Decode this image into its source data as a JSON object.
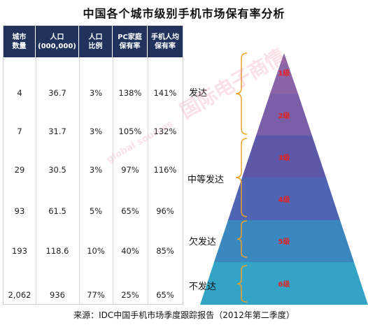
{
  "title": "中国各个城市级别手机市场保有率分析",
  "table": {
    "headers": [
      "城市\n数量",
      "人口\n(000,000)",
      "人口\n比例",
      "PC家庭\n保有率",
      "手机人均\n保有率"
    ],
    "rows": [
      [
        "4",
        "36.7",
        "3%",
        "138%",
        "141%"
      ],
      [
        "7",
        "31.7",
        "3%",
        "105%",
        "132%"
      ],
      [
        "29",
        "30.5",
        "3%",
        "97%",
        "116%"
      ],
      [
        "93",
        "61.5",
        "5%",
        "65%",
        "96%"
      ],
      [
        "193",
        "118.6",
        "10%",
        "40%",
        "85%"
      ],
      [
        "2,062",
        "936",
        "77%",
        "25%",
        "65%"
      ]
    ]
  },
  "pyramid": {
    "tiers": [
      {
        "label": "1级",
        "color": "#8a64a6"
      },
      {
        "label": "2级",
        "color": "#7a5fa8"
      },
      {
        "label": "3级",
        "color": "#5d57a8"
      },
      {
        "label": "4级",
        "color": "#4f65b3"
      },
      {
        "label": "5级",
        "color": "#3a88bf"
      },
      {
        "label": "6级",
        "color": "#33a4c6"
      }
    ],
    "groups": [
      {
        "label": "发达"
      },
      {
        "label": "中等发达"
      },
      {
        "label": "欠发达"
      },
      {
        "label": "不发达"
      }
    ]
  },
  "chart_data": {
    "type": "table",
    "title": "中国各个城市级别手机市场保有率分析",
    "columns": [
      "城市数量",
      "人口(000,000)",
      "人口比例",
      "PC家庭保有率",
      "手机人均保有率"
    ],
    "tiers": [
      "1级",
      "2级",
      "3级",
      "4级",
      "5级",
      "6级"
    ],
    "rows": [
      [
        4,
        36.7,
        3,
        138,
        141
      ],
      [
        7,
        31.7,
        3,
        105,
        132
      ],
      [
        29,
        30.5,
        3,
        97,
        116
      ],
      [
        93,
        61.5,
        5,
        65,
        96
      ],
      [
        193,
        118.6,
        10,
        40,
        85
      ],
      [
        2062,
        936,
        77,
        25,
        65
      ]
    ],
    "tier_groups": {
      "发达": [
        "1级",
        "2级"
      ],
      "中等发达": [
        "3级",
        "4级"
      ],
      "欠发达": [
        "5级"
      ],
      "不发达": [
        "6级"
      ]
    }
  },
  "watermark": {
    "line1": "global sources",
    "line2": "国际电子商情"
  },
  "source": "来源：IDC中国手机市场季度跟踪报告（2012年第二季度）"
}
